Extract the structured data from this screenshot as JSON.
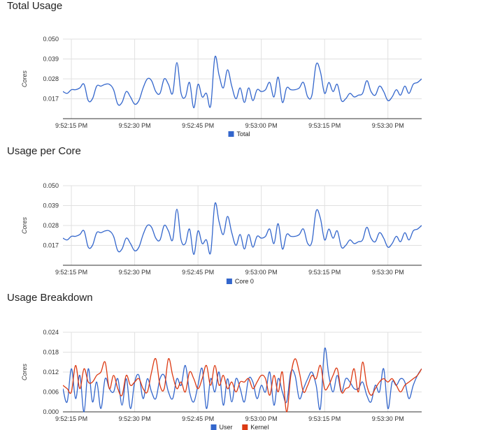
{
  "colors": {
    "blue": "#3366cc",
    "red": "#dc3912",
    "grid": "#e0e0e0",
    "axis": "#333333"
  },
  "chart_data": [
    {
      "id": "total-usage",
      "type": "line",
      "title": "Total Usage",
      "xlabel": "",
      "ylabel": "Cores",
      "yticks": [
        "0.050",
        "0.039",
        "0.028",
        "0.017"
      ],
      "yticks_values": [
        0.05,
        0.039,
        0.028,
        0.017
      ],
      "ylim": [
        0.006,
        0.05
      ],
      "xticks": [
        "9:52:15 PM",
        "9:52:30 PM",
        "9:52:45 PM",
        "9:53:00 PM",
        "9:53:15 PM",
        "9:53:30 PM"
      ],
      "xticks_values": [
        15,
        30,
        45,
        60,
        75,
        90
      ],
      "xlim": [
        13,
        98
      ],
      "grid": true,
      "legend": "bottom",
      "series": [
        {
          "name": "Total",
          "color": "#3366cc",
          "x": [
            13,
            14,
            15,
            16,
            17,
            18,
            19,
            20,
            21,
            22,
            23,
            24,
            25,
            26,
            27,
            28,
            29,
            30,
            31,
            32,
            33,
            34,
            35,
            36,
            37,
            38,
            39,
            40,
            41,
            42,
            43,
            44,
            45,
            46,
            47,
            48,
            49,
            50,
            51,
            52,
            53,
            54,
            55,
            56,
            57,
            58,
            59,
            60,
            61,
            62,
            63,
            64,
            65,
            66,
            67,
            68,
            69,
            70,
            71,
            72,
            73,
            74,
            75,
            76,
            77,
            78,
            79,
            80,
            81,
            82,
            83,
            84,
            85,
            86,
            87,
            88,
            89,
            90,
            91,
            92,
            93,
            94,
            95,
            96,
            97,
            98
          ],
          "values": [
            0.021,
            0.02,
            0.022,
            0.022,
            0.023,
            0.025,
            0.016,
            0.017,
            0.024,
            0.024,
            0.025,
            0.025,
            0.022,
            0.014,
            0.015,
            0.021,
            0.018,
            0.014,
            0.016,
            0.023,
            0.028,
            0.027,
            0.021,
            0.02,
            0.028,
            0.025,
            0.02,
            0.037,
            0.02,
            0.018,
            0.026,
            0.012,
            0.025,
            0.018,
            0.02,
            0.013,
            0.04,
            0.03,
            0.023,
            0.033,
            0.024,
            0.017,
            0.023,
            0.015,
            0.023,
            0.016,
            0.022,
            0.021,
            0.022,
            0.026,
            0.018,
            0.029,
            0.015,
            0.023,
            0.022,
            0.022,
            0.023,
            0.026,
            0.018,
            0.019,
            0.036,
            0.032,
            0.02,
            0.026,
            0.021,
            0.025,
            0.016,
            0.017,
            0.02,
            0.018,
            0.019,
            0.02,
            0.027,
            0.021,
            0.019,
            0.024,
            0.021,
            0.016,
            0.018,
            0.022,
            0.019,
            0.024,
            0.02,
            0.025,
            0.026,
            0.028
          ]
        }
      ]
    },
    {
      "id": "usage-per-core",
      "type": "line",
      "title": "Usage per Core",
      "xlabel": "",
      "ylabel": "Cores",
      "yticks": [
        "0.050",
        "0.039",
        "0.028",
        "0.017"
      ],
      "yticks_values": [
        0.05,
        0.039,
        0.028,
        0.017
      ],
      "ylim": [
        0.006,
        0.05
      ],
      "xticks": [
        "9:52:15 PM",
        "9:52:30 PM",
        "9:52:45 PM",
        "9:53:00 PM",
        "9:53:15 PM",
        "9:53:30 PM"
      ],
      "xticks_values": [
        15,
        30,
        45,
        60,
        75,
        90
      ],
      "xlim": [
        13,
        98
      ],
      "grid": true,
      "legend": "bottom",
      "series": [
        {
          "name": "Core 0",
          "color": "#3366cc",
          "x": [
            13,
            14,
            15,
            16,
            17,
            18,
            19,
            20,
            21,
            22,
            23,
            24,
            25,
            26,
            27,
            28,
            29,
            30,
            31,
            32,
            33,
            34,
            35,
            36,
            37,
            38,
            39,
            40,
            41,
            42,
            43,
            44,
            45,
            46,
            47,
            48,
            49,
            50,
            51,
            52,
            53,
            54,
            55,
            56,
            57,
            58,
            59,
            60,
            61,
            62,
            63,
            64,
            65,
            66,
            67,
            68,
            69,
            70,
            71,
            72,
            73,
            74,
            75,
            76,
            77,
            78,
            79,
            80,
            81,
            82,
            83,
            84,
            85,
            86,
            87,
            88,
            89,
            90,
            91,
            92,
            93,
            94,
            95,
            96,
            97,
            98
          ],
          "values": [
            0.021,
            0.02,
            0.022,
            0.022,
            0.023,
            0.025,
            0.016,
            0.017,
            0.024,
            0.024,
            0.025,
            0.025,
            0.022,
            0.014,
            0.015,
            0.021,
            0.018,
            0.014,
            0.016,
            0.023,
            0.028,
            0.027,
            0.021,
            0.02,
            0.028,
            0.025,
            0.02,
            0.037,
            0.02,
            0.018,
            0.026,
            0.012,
            0.025,
            0.018,
            0.02,
            0.013,
            0.04,
            0.03,
            0.023,
            0.033,
            0.024,
            0.017,
            0.023,
            0.015,
            0.023,
            0.016,
            0.022,
            0.021,
            0.022,
            0.026,
            0.018,
            0.029,
            0.015,
            0.023,
            0.022,
            0.022,
            0.023,
            0.026,
            0.018,
            0.019,
            0.036,
            0.032,
            0.02,
            0.026,
            0.021,
            0.025,
            0.016,
            0.017,
            0.02,
            0.018,
            0.019,
            0.02,
            0.027,
            0.021,
            0.019,
            0.024,
            0.021,
            0.016,
            0.018,
            0.022,
            0.019,
            0.024,
            0.02,
            0.025,
            0.026,
            0.028
          ]
        }
      ]
    },
    {
      "id": "usage-breakdown",
      "type": "line",
      "title": "Usage Breakdown",
      "xlabel": "",
      "ylabel": "Cores",
      "yticks": [
        "0.024",
        "0.018",
        "0.012",
        "0.006",
        "0.000"
      ],
      "yticks_values": [
        0.024,
        0.018,
        0.012,
        0.006,
        0.0
      ],
      "ylim": [
        0,
        0.024
      ],
      "xticks": [
        "9:52:15 PM",
        "9:52:30 PM",
        "9:52:45 PM",
        "9:53:00 PM",
        "9:53:15 PM",
        "9:53:30 PM"
      ],
      "xticks_values": [
        15,
        30,
        45,
        60,
        75,
        90
      ],
      "xlim": [
        13,
        98
      ],
      "grid": true,
      "legend": "bottom",
      "series": [
        {
          "name": "User",
          "color": "#3366cc",
          "x": [
            13,
            14,
            15,
            16,
            17,
            18,
            19,
            20,
            21,
            22,
            23,
            24,
            25,
            26,
            27,
            28,
            29,
            30,
            31,
            32,
            33,
            34,
            35,
            36,
            37,
            38,
            39,
            40,
            41,
            42,
            43,
            44,
            45,
            46,
            47,
            48,
            49,
            50,
            51,
            52,
            53,
            54,
            55,
            56,
            57,
            58,
            59,
            60,
            61,
            62,
            63,
            64,
            65,
            66,
            67,
            68,
            69,
            70,
            71,
            72,
            73,
            74,
            75,
            76,
            77,
            78,
            79,
            80,
            81,
            82,
            83,
            84,
            85,
            86,
            87,
            88,
            89,
            90,
            91,
            92,
            93,
            94,
            95,
            96,
            97,
            98
          ],
          "values": [
            0.007,
            0.003,
            0.013,
            0.004,
            0.011,
            0.0,
            0.013,
            0.003,
            0.009,
            0.001,
            0.01,
            0.007,
            0.006,
            0.01,
            0.002,
            0.01,
            0.001,
            0.009,
            0.011,
            0.004,
            0.01,
            0.006,
            0.004,
            0.01,
            0.011,
            0.006,
            0.004,
            0.01,
            0.008,
            0.014,
            0.006,
            0.003,
            0.008,
            0.013,
            0.001,
            0.01,
            0.006,
            0.012,
            0.002,
            0.01,
            0.003,
            0.01,
            0.007,
            0.003,
            0.01,
            0.009,
            0.004,
            0.008,
            0.006,
            0.012,
            0.002,
            0.01,
            0.006,
            0.003,
            0.012,
            0.011,
            0.004,
            0.007,
            0.01,
            0.012,
            0.008,
            0.001,
            0.019,
            0.011,
            0.006,
            0.011,
            0.006,
            0.01,
            0.009,
            0.007,
            0.007,
            0.009,
            0.005,
            0.003,
            0.008,
            0.006,
            0.013,
            0.001,
            0.009,
            0.008,
            0.01,
            0.009,
            0.004,
            0.008,
            0.011,
            0.013
          ]
        },
        {
          "name": "Kernel",
          "color": "#dc3912",
          "x": [
            13,
            14,
            15,
            16,
            17,
            18,
            19,
            20,
            21,
            22,
            23,
            24,
            25,
            26,
            27,
            28,
            29,
            30,
            31,
            32,
            33,
            34,
            35,
            36,
            37,
            38,
            39,
            40,
            41,
            42,
            43,
            44,
            45,
            46,
            47,
            48,
            49,
            50,
            51,
            52,
            53,
            54,
            55,
            56,
            57,
            58,
            59,
            60,
            61,
            62,
            63,
            64,
            65,
            66,
            67,
            68,
            69,
            70,
            71,
            72,
            73,
            74,
            75,
            76,
            77,
            78,
            79,
            80,
            81,
            82,
            83,
            84,
            85,
            86,
            87,
            88,
            89,
            90,
            91,
            92,
            93,
            94,
            95,
            96,
            97,
            98
          ],
          "values": [
            0.008,
            0.007,
            0.006,
            0.014,
            0.007,
            0.013,
            0.009,
            0.009,
            0.011,
            0.012,
            0.015,
            0.007,
            0.011,
            0.007,
            0.005,
            0.011,
            0.008,
            0.009,
            0.01,
            0.007,
            0.006,
            0.012,
            0.016,
            0.008,
            0.007,
            0.016,
            0.011,
            0.007,
            0.009,
            0.006,
            0.012,
            0.01,
            0.007,
            0.01,
            0.014,
            0.008,
            0.014,
            0.008,
            0.011,
            0.007,
            0.009,
            0.006,
            0.009,
            0.009,
            0.01,
            0.007,
            0.009,
            0.011,
            0.01,
            0.005,
            0.011,
            0.006,
            0.012,
            0.0,
            0.011,
            0.016,
            0.012,
            0.006,
            0.008,
            0.011,
            0.01,
            0.014,
            0.007,
            0.008,
            0.011,
            0.013,
            0.006,
            0.007,
            0.008,
            0.013,
            0.006,
            0.015,
            0.008,
            0.005,
            0.007,
            0.009,
            0.01,
            0.009,
            0.01,
            0.008,
            0.006,
            0.008,
            0.009,
            0.01,
            0.011,
            0.013
          ]
        }
      ]
    }
  ]
}
